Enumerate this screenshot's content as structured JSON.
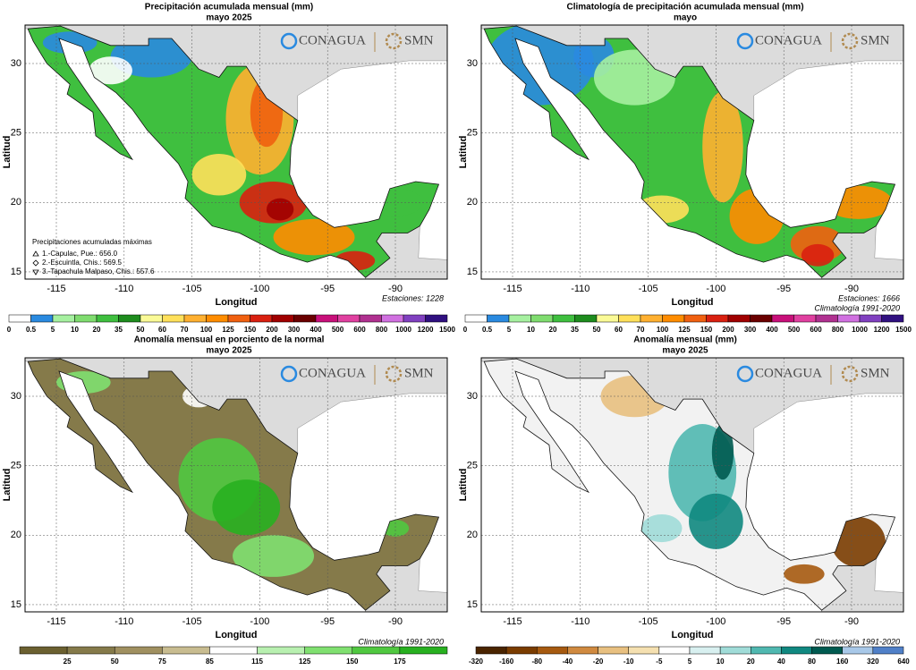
{
  "panels": [
    {
      "title": "Precipitación acumulada mensual (mm)",
      "subtitle": "mayo 2025",
      "x_ticks": [
        "-115",
        "-110",
        "-105",
        "-100",
        "-95",
        "-90"
      ],
      "y_ticks": [
        "30",
        "25",
        "20",
        "15"
      ],
      "x_label": "Longitud",
      "y_label": "Latitud",
      "logos": [
        "CONAGUA",
        "SMN"
      ],
      "notes": [
        "Estaciones:  1228"
      ],
      "max_box": {
        "heading": "Precipitaciones acumuladas máximas",
        "items": [
          "1.-Capulac, Pue.:  656.0",
          "2.-Escuintla, Chis.:  569.5",
          "3.-Tapachula Malpaso, Chis.:  557.6"
        ]
      },
      "colorbar": {
        "labels": [
          "0",
          "0.5",
          "5",
          "10",
          "20",
          "35",
          "50",
          "60",
          "70",
          "100",
          "125",
          "150",
          "200",
          "300",
          "400",
          "500",
          "600",
          "800",
          "1000",
          "1200",
          "1500"
        ],
        "colors": [
          "#ffffff",
          "#2a8ae0",
          "#a6f0a0",
          "#7fdc6f",
          "#3fbf3f",
          "#1e8c1e",
          "#fafa96",
          "#ffe05a",
          "#ffb030",
          "#ff8c00",
          "#f06010",
          "#d92010",
          "#a00000",
          "#6a0000",
          "#c8107a",
          "#e040a0",
          "#b03090",
          "#d070e0",
          "#8040c0",
          "#301080"
        ],
        "edges": false
      }
    },
    {
      "title": "Climatología de precipitación acumulada mensual (mm)",
      "subtitle": "mayo",
      "x_ticks": [
        "-115",
        "-110",
        "-105",
        "-100",
        "-95",
        "-90"
      ],
      "y_ticks": [
        "30",
        "25",
        "20",
        "15"
      ],
      "x_label": "Longitud",
      "y_label": "Latitud",
      "logos": [
        "CONAGUA",
        "SMN"
      ],
      "notes": [
        "Estaciones:  1666",
        "Climatología 1991-2020"
      ],
      "colorbar": {
        "labels": [
          "0",
          "0.5",
          "5",
          "10",
          "20",
          "35",
          "50",
          "60",
          "70",
          "100",
          "125",
          "150",
          "200",
          "300",
          "400",
          "500",
          "600",
          "800",
          "1000",
          "1200",
          "1500"
        ],
        "colors": [
          "#ffffff",
          "#2a8ae0",
          "#a6f0a0",
          "#7fdc6f",
          "#3fbf3f",
          "#1e8c1e",
          "#fafa96",
          "#ffe05a",
          "#ffb030",
          "#ff8c00",
          "#f06010",
          "#d92010",
          "#a00000",
          "#6a0000",
          "#c8107a",
          "#e040a0",
          "#b03090",
          "#d070e0",
          "#8040c0",
          "#301080"
        ],
        "edges": false
      }
    },
    {
      "title": "Anomalía mensual en porciento de la normal",
      "subtitle": "mayo 2025",
      "x_ticks": [
        "-115",
        "-110",
        "-105",
        "-100",
        "-95",
        "-90"
      ],
      "y_ticks": [
        "30",
        "25",
        "20",
        "15"
      ],
      "x_label": "Longitud",
      "y_label": "Latitud",
      "logos": [
        "CONAGUA",
        "SMN"
      ],
      "notes": [
        "Climatología 1991-2020"
      ],
      "colorbar": {
        "labels": [
          "25",
          "50",
          "75",
          "85",
          "115",
          "125",
          "150",
          "175"
        ],
        "colors": [
          "#6b6030",
          "#857a4a",
          "#a09060",
          "#c8bc90",
          "#ffffff",
          "#b8f0b0",
          "#80e070",
          "#50c840",
          "#28b020"
        ],
        "edges": true
      }
    },
    {
      "title": "Anomalía mensual (mm)",
      "subtitle": "mayo 2025",
      "x_ticks": [
        "-115",
        "-110",
        "-105",
        "-100",
        "-95",
        "-90"
      ],
      "y_ticks": [
        "30",
        "25",
        "20",
        "15"
      ],
      "x_label": "Longitud",
      "y_label": "Latitud",
      "logos": [
        "CONAGUA",
        "SMN"
      ],
      "notes": [
        "Climatología 1991-2020"
      ],
      "colorbar": {
        "labels": [
          "-320",
          "-160",
          "-80",
          "-40",
          "-20",
          "-10",
          "-5",
          "5",
          "10",
          "20",
          "40",
          "80",
          "160",
          "320",
          "640"
        ],
        "colors": [
          "#4a2400",
          "#7a3c00",
          "#a65a10",
          "#d08a40",
          "#e8c080",
          "#f5e0b0",
          "#ffffff",
          "#d8f0f0",
          "#a0dcd8",
          "#50b8b0",
          "#108880",
          "#005a50",
          "#a8c8e8",
          "#5080c8"
        ],
        "edges": false
      }
    }
  ]
}
